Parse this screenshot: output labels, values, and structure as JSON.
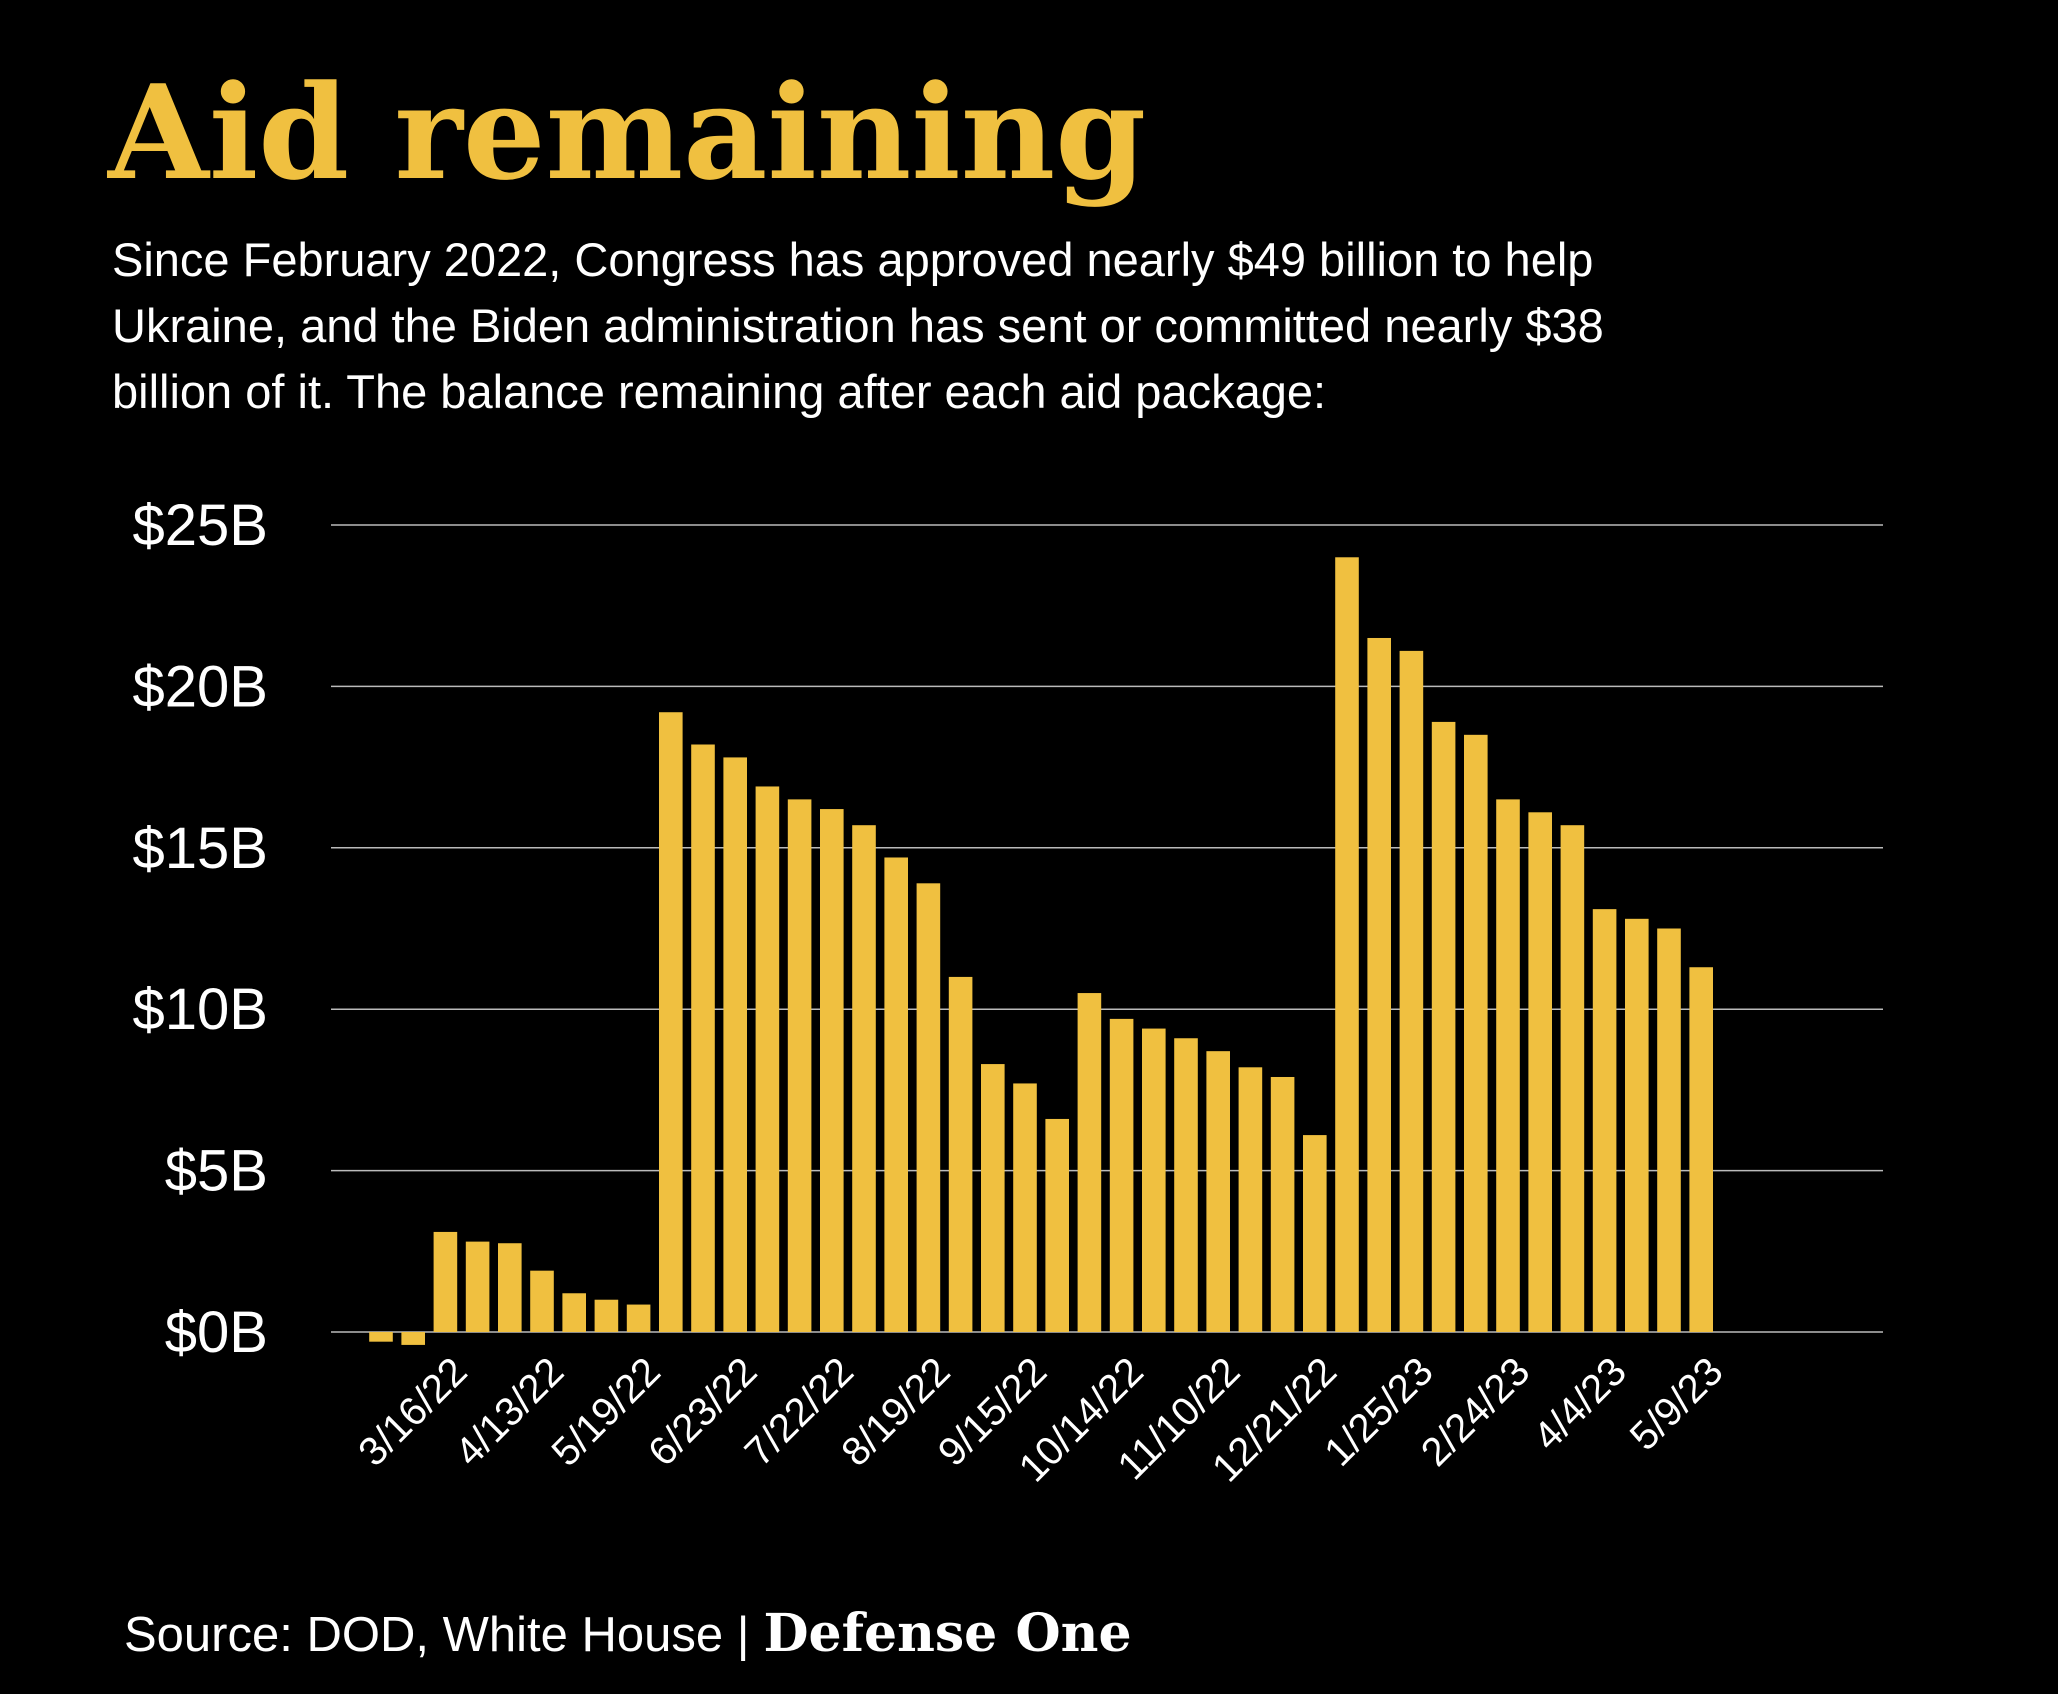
{
  "chart_data": {
    "type": "bar",
    "title": "Aid remaining",
    "subtitle": [
      "Since February 2022, Congress has approved nearly $49 billion to help",
      "Ukraine, and the Biden administration has sent or committed nearly $38",
      "billion of it. The balance remaining after each aid package:"
    ],
    "source": "Source: DOD, White House |",
    "brand": "Defense One",
    "categories": [
      null,
      null,
      "3/16/22",
      null,
      null,
      "4/13/22",
      null,
      null,
      "5/19/22",
      null,
      null,
      "6/23/22",
      null,
      null,
      "7/22/22",
      null,
      null,
      "8/19/22",
      null,
      null,
      "9/15/22",
      null,
      null,
      "10/14/22",
      null,
      null,
      "11/10/22",
      null,
      null,
      "12/21/22",
      null,
      null,
      "1/25/23",
      null,
      null,
      "2/24/23",
      null,
      null,
      "4/4/23",
      null,
      null,
      "5/9/23"
    ],
    "values": [
      -0.3,
      -0.4,
      3.1,
      2.8,
      2.75,
      1.9,
      1.2,
      1.0,
      0.85,
      19.2,
      18.2,
      17.8,
      16.9,
      16.5,
      16.2,
      15.7,
      14.7,
      13.9,
      11.0,
      8.3,
      7.7,
      6.6,
      10.5,
      9.7,
      9.4,
      9.1,
      8.7,
      8.2,
      7.9,
      6.1,
      24.0,
      21.5,
      21.1,
      18.9,
      18.5,
      16.5,
      16.1,
      15.7,
      13.1,
      12.8,
      12.5,
      11.3
    ],
    "color": "#f0c040",
    "ylim": [
      0,
      25
    ],
    "yticks": [
      {
        "value": 0,
        "label": "$0B"
      },
      {
        "value": 5,
        "label": "$5B"
      },
      {
        "value": 10,
        "label": "$10B"
      },
      {
        "value": 15,
        "label": "$15B"
      },
      {
        "value": 20,
        "label": "$20B"
      },
      {
        "value": 25,
        "label": "$25B"
      }
    ],
    "grid": true
  }
}
